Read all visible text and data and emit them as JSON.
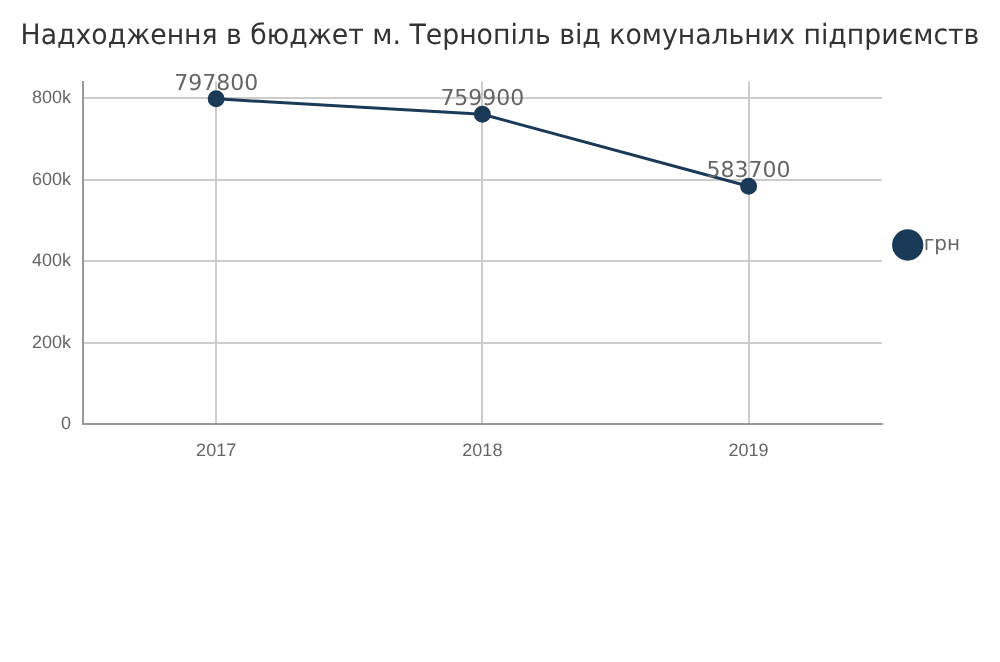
{
  "chart_data": {
    "type": "line",
    "title": "Надходження в бюджет м. Тернопіль від комунальних підприємств",
    "categories": [
      "2017",
      "2018",
      "2019"
    ],
    "series": [
      {
        "name": "грн",
        "color": "#1b3a57",
        "values": [
          797800,
          759900,
          583700
        ]
      }
    ],
    "ylim": [
      0,
      840000
    ],
    "yticks": [
      {
        "value": 0,
        "label": "0"
      },
      {
        "value": 200000,
        "label": "200k"
      },
      {
        "value": 400000,
        "label": "400k"
      },
      {
        "value": 600000,
        "label": "600k"
      },
      {
        "value": 800000,
        "label": "800k"
      }
    ],
    "grid": true,
    "legend": "right",
    "marker": "circle",
    "data_labels": true
  }
}
